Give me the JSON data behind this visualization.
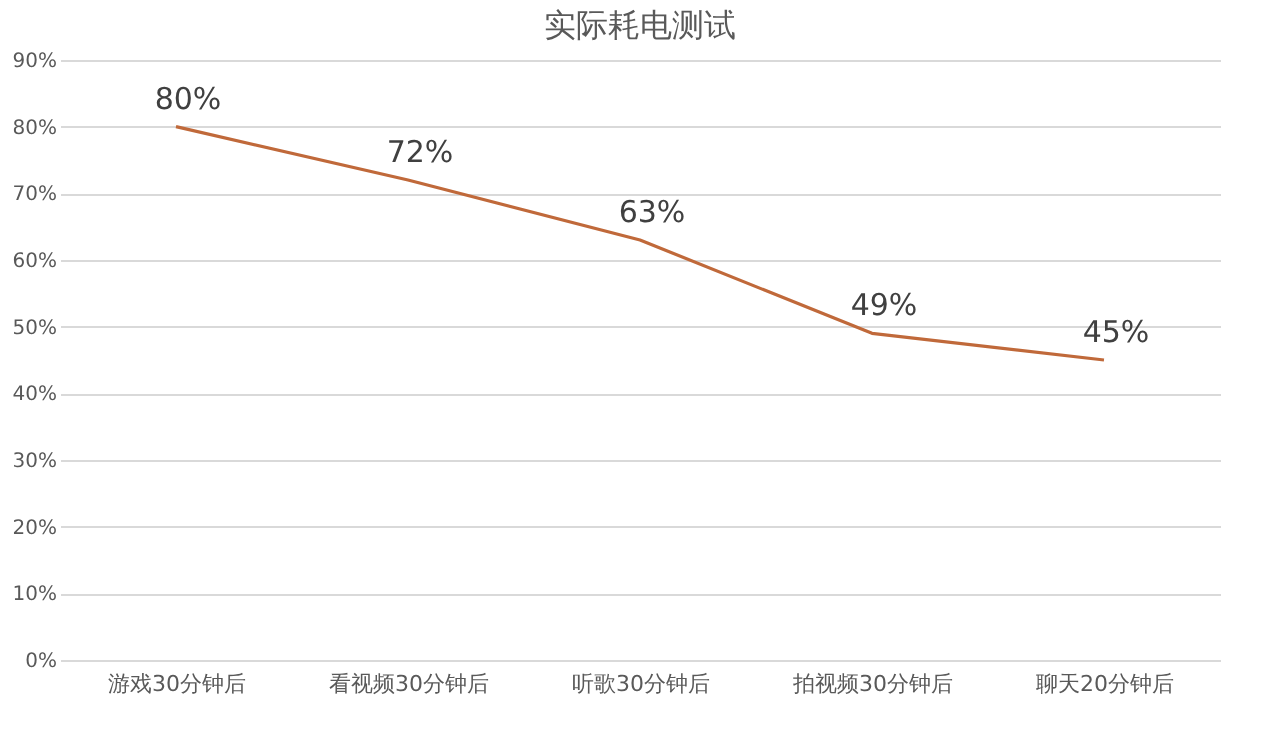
{
  "chart_data": {
    "type": "line",
    "title": "实际耗电测试",
    "categories": [
      "游戏30分钟后",
      "看视频30分钟后",
      "听歌30分钟后",
      "拍视频30分钟后",
      "聊天20分钟后"
    ],
    "series": [
      {
        "color": "#c0693a",
        "values": [
          80,
          72,
          63,
          49,
          45
        ],
        "value_labels": [
          "80%",
          "72%",
          "63%",
          "49%",
          "45%"
        ]
      }
    ],
    "ylim": [
      0,
      90
    ],
    "yticks": [
      {
        "value": 0,
        "label": "0%"
      },
      {
        "value": 10,
        "label": "10%"
      },
      {
        "value": 20,
        "label": "20%"
      },
      {
        "value": 30,
        "label": "30%"
      },
      {
        "value": 40,
        "label": "40%"
      },
      {
        "value": 50,
        "label": "50%"
      },
      {
        "value": 60,
        "label": "60%"
      },
      {
        "value": 70,
        "label": "70%"
      },
      {
        "value": 80,
        "label": "80%"
      },
      {
        "value": 90,
        "label": "90%"
      }
    ],
    "grid": "y",
    "legend": false,
    "marker": "none",
    "line_style": "solid"
  }
}
